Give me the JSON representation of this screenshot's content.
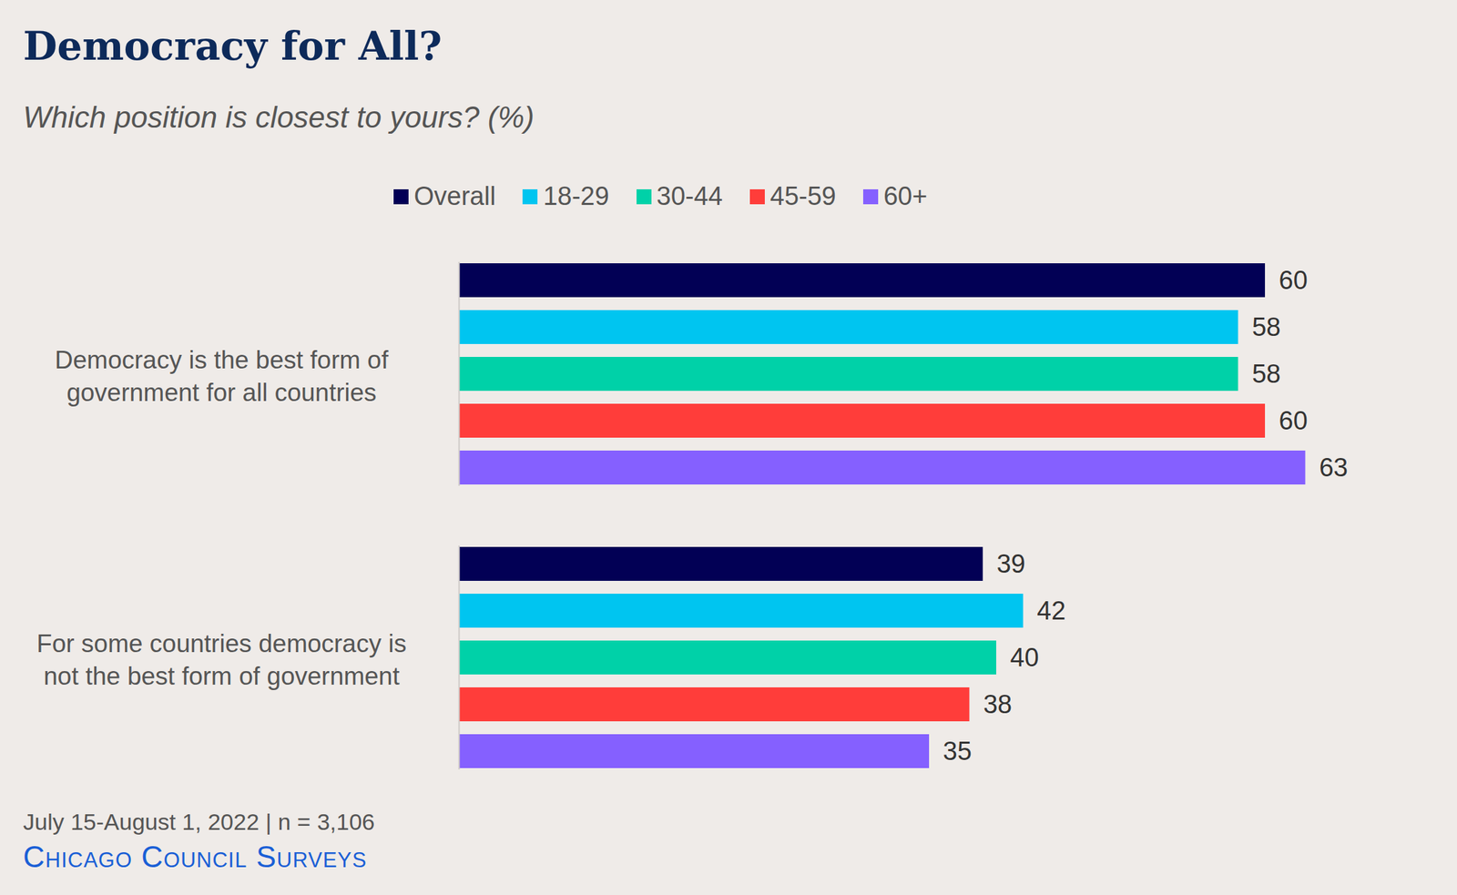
{
  "chart_data": {
    "type": "bar",
    "orientation": "horizontal",
    "title": "Democracy for All?",
    "subtitle": "Which position is closest to yours? (%)",
    "categories": [
      "Democracy is the best form of government for all countries",
      "For some countries democracy is not the best form of government"
    ],
    "series": [
      {
        "name": "Overall",
        "color": "#020055",
        "values": [
          60,
          39
        ]
      },
      {
        "name": "18-29",
        "color": "#00c5f0",
        "values": [
          58,
          42
        ]
      },
      {
        "name": "30-44",
        "color": "#00d1a8",
        "values": [
          58,
          40
        ]
      },
      {
        "name": "45-59",
        "color": "#ff3d3a",
        "values": [
          60,
          38
        ]
      },
      {
        "name": "60+",
        "color": "#8560ff",
        "values": [
          63,
          35
        ]
      }
    ],
    "xlim": [
      0,
      70
    ],
    "data_labels": true,
    "tick_labels": "y",
    "legend": "top",
    "grid": false,
    "caption": "July 15-August 1, 2022 | n = 3,106",
    "source": "Chicago Council Surveys"
  }
}
